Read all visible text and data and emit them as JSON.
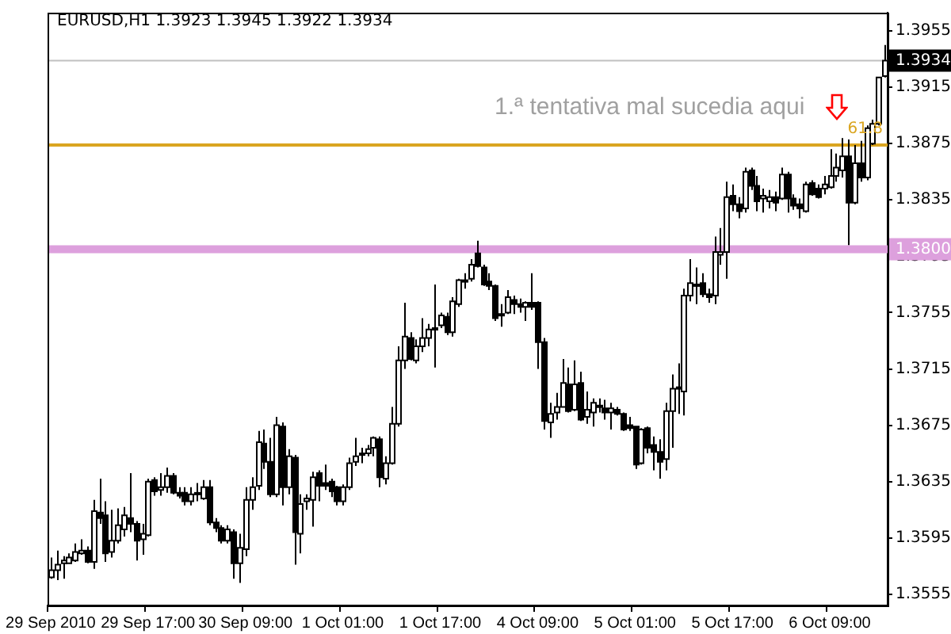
{
  "chart_data": {
    "type": "candlestick",
    "title": "EURUSD,H1  1.3923 1.3945 1.3922 1.3934",
    "categories": [
      "29 Sep 2010",
      null,
      null,
      null,
      null,
      null,
      null,
      null,
      null,
      null,
      null,
      null,
      null,
      null,
      null,
      null,
      "29 Sep 17:00",
      null,
      null,
      null,
      null,
      null,
      null,
      null,
      null,
      null,
      null,
      null,
      null,
      null,
      null,
      null,
      "30 Sep 09:00",
      null,
      null,
      null,
      null,
      null,
      null,
      null,
      null,
      null,
      null,
      null,
      null,
      null,
      null,
      null,
      "1 Oct 01:00",
      null,
      null,
      null,
      null,
      null,
      null,
      null,
      null,
      null,
      null,
      null,
      null,
      null,
      null,
      null,
      "1 Oct 17:00",
      null,
      null,
      null,
      null,
      null,
      null,
      null,
      null,
      null,
      null,
      null,
      null,
      null,
      null,
      null,
      "4 Oct 09:00",
      null,
      null,
      null,
      null,
      null,
      null,
      null,
      null,
      null,
      null,
      null,
      null,
      null,
      null,
      null,
      "5 Oct 01:00",
      null,
      null,
      null,
      null,
      null,
      null,
      null,
      null,
      null,
      null,
      null,
      null,
      null,
      null,
      null,
      "5 Oct 17:00",
      null,
      null,
      null,
      null,
      null,
      null,
      null,
      null,
      null,
      null,
      null,
      null,
      null,
      null,
      null,
      "6 Oct 09:00",
      null,
      null,
      null,
      null,
      null,
      null,
      null,
      null,
      null
    ],
    "ohlc": [
      [
        1.3567,
        1.3581,
        1.3566,
        1.3572
      ],
      [
        1.3572,
        1.3586,
        1.3565,
        1.3576
      ],
      [
        1.3577,
        1.3582,
        1.3566,
        1.3579
      ],
      [
        1.3577,
        1.3584,
        1.3577,
        1.3581
      ],
      [
        1.3579,
        1.3591,
        1.3578,
        1.3585
      ],
      [
        1.3584,
        1.3594,
        1.3583,
        1.3586
      ],
      [
        1.3586,
        1.3589,
        1.3577,
        1.3578
      ],
      [
        1.3578,
        1.3622,
        1.3573,
        1.3614
      ],
      [
        1.3613,
        1.3637,
        1.3605,
        1.3609
      ],
      [
        1.3611,
        1.3621,
        1.3578,
        1.3584
      ],
      [
        1.3585,
        1.3615,
        1.3581,
        1.3593
      ],
      [
        1.3593,
        1.3616,
        1.3591,
        1.3604
      ],
      [
        1.3601,
        1.3617,
        1.3596,
        1.3611
      ],
      [
        1.3609,
        1.3641,
        1.3599,
        1.3605
      ],
      [
        1.3605,
        1.3607,
        1.3579,
        1.3593
      ],
      [
        1.3594,
        1.3605,
        1.3583,
        1.3598
      ],
      [
        1.3597,
        1.3637,
        1.3596,
        1.3635
      ],
      [
        1.3636,
        1.3638,
        1.3625,
        1.3628
      ],
      [
        1.3629,
        1.3641,
        1.3625,
        1.3631
      ],
      [
        1.3631,
        1.3645,
        1.3627,
        1.3639
      ],
      [
        1.3639,
        1.3641,
        1.3626,
        1.3627
      ],
      [
        1.3627,
        1.3631,
        1.3623,
        1.3625
      ],
      [
        1.3627,
        1.3631,
        1.3618,
        1.3621
      ],
      [
        1.3621,
        1.3631,
        1.3618,
        1.3626
      ],
      [
        1.3626,
        1.3634,
        1.3621,
        1.3627
      ],
      [
        1.3623,
        1.3636,
        1.3622,
        1.3631
      ],
      [
        1.3631,
        1.3636,
        1.3604,
        1.3606
      ],
      [
        1.3606,
        1.3609,
        1.3599,
        1.3602
      ],
      [
        1.3602,
        1.3604,
        1.3591,
        1.3593
      ],
      [
        1.3593,
        1.3604,
        1.3591,
        1.3601
      ],
      [
        1.3599,
        1.3601,
        1.3566,
        1.3577
      ],
      [
        1.3577,
        1.3598,
        1.3563,
        1.3588
      ],
      [
        1.3587,
        1.3631,
        1.3582,
        1.3622
      ],
      [
        1.3622,
        1.3638,
        1.3615,
        1.3631
      ],
      [
        1.3632,
        1.3671,
        1.3629,
        1.3663
      ],
      [
        1.3662,
        1.3672,
        1.3644,
        1.3649
      ],
      [
        1.3649,
        1.3666,
        1.3624,
        1.3626
      ],
      [
        1.3626,
        1.3681,
        1.3624,
        1.3675
      ],
      [
        1.3674,
        1.3677,
        1.3618,
        1.3631
      ],
      [
        1.3631,
        1.3658,
        1.3626,
        1.3653
      ],
      [
        1.3652,
        1.3654,
        1.3576,
        1.3599
      ],
      [
        1.3598,
        1.3626,
        1.3584,
        1.3619
      ],
      [
        1.3621,
        1.3626,
        1.3615,
        1.3623
      ],
      [
        1.3622,
        1.3642,
        1.3603,
        1.3638
      ],
      [
        1.3641,
        1.3643,
        1.3621,
        1.3632
      ],
      [
        1.3634,
        1.3647,
        1.3629,
        1.3632
      ],
      [
        1.3635,
        1.3637,
        1.3624,
        1.3628
      ],
      [
        1.3631,
        1.3632,
        1.3618,
        1.3621
      ],
      [
        1.3621,
        1.3633,
        1.3618,
        1.3631
      ],
      [
        1.3631,
        1.3652,
        1.3629,
        1.3648
      ],
      [
        1.3649,
        1.3666,
        1.3646,
        1.3653
      ],
      [
        1.3655,
        1.3659,
        1.3648,
        1.3654
      ],
      [
        1.3655,
        1.3661,
        1.3653,
        1.3658
      ],
      [
        1.3659,
        1.3667,
        1.3653,
        1.3666
      ],
      [
        1.3665,
        1.3667,
        1.3631,
        1.3638
      ],
      [
        1.3637,
        1.3653,
        1.3633,
        1.3648
      ],
      [
        1.3648,
        1.3688,
        1.3647,
        1.3676
      ],
      [
        1.3676,
        1.3731,
        1.3674,
        1.3721
      ],
      [
        1.3721,
        1.3762,
        1.3715,
        1.3738
      ],
      [
        1.3737,
        1.3741,
        1.3721,
        1.3722
      ],
      [
        1.3721,
        1.3736,
        1.3719,
        1.3731
      ],
      [
        1.3731,
        1.3751,
        1.3727,
        1.3737
      ],
      [
        1.3737,
        1.3747,
        1.3731,
        1.3743
      ],
      [
        1.3744,
        1.3775,
        1.3716,
        1.3743
      ],
      [
        1.3746,
        1.3755,
        1.3744,
        1.3753
      ],
      [
        1.3752,
        1.3755,
        1.3739,
        1.3741
      ],
      [
        1.3741,
        1.3766,
        1.3738,
        1.3763
      ],
      [
        1.3761,
        1.3779,
        1.3759,
        1.3778
      ],
      [
        1.3777,
        1.3783,
        1.3772,
        1.3778
      ],
      [
        1.3779,
        1.3793,
        1.3777,
        1.3789
      ],
      [
        1.3797,
        1.3806,
        1.3787,
        1.3788
      ],
      [
        1.3787,
        1.3789,
        1.3774,
        1.3775
      ],
      [
        1.3777,
        1.3783,
        1.3771,
        1.3774
      ],
      [
        1.3774,
        1.3775,
        1.3749,
        1.3751
      ],
      [
        1.3754,
        1.3761,
        1.3745,
        1.3753
      ],
      [
        1.3755,
        1.3771,
        1.3754,
        1.3766
      ],
      [
        1.3764,
        1.3767,
        1.3754,
        1.3761
      ],
      [
        1.3761,
        1.3765,
        1.3755,
        1.3759
      ],
      [
        1.3759,
        1.3763,
        1.3749,
        1.3762
      ],
      [
        1.3762,
        1.3783,
        1.3757,
        1.3759
      ],
      [
        1.3762,
        1.3763,
        1.3715,
        1.3734
      ],
      [
        1.3734,
        1.3737,
        1.3672,
        1.3678
      ],
      [
        1.3677,
        1.3691,
        1.3666,
        1.3683
      ],
      [
        1.3684,
        1.3698,
        1.3679,
        1.3688
      ],
      [
        1.3688,
        1.3722,
        1.3688,
        1.3705
      ],
      [
        1.3704,
        1.3716,
        1.3684,
        1.3685
      ],
      [
        1.3686,
        1.3721,
        1.3685,
        1.3704
      ],
      [
        1.3705,
        1.3713,
        1.3678,
        1.3679
      ],
      [
        1.3681,
        1.3699,
        1.3676,
        1.3686
      ],
      [
        1.3684,
        1.3694,
        1.3674,
        1.3691
      ],
      [
        1.3689,
        1.3694,
        1.3684,
        1.3688
      ],
      [
        1.3687,
        1.3693,
        1.3679,
        1.3684
      ],
      [
        1.3684,
        1.3691,
        1.3672,
        1.3687
      ],
      [
        1.3686,
        1.3688,
        1.3682,
        1.3683
      ],
      [
        1.3683,
        1.3684,
        1.3671,
        1.3672
      ],
      [
        1.3675,
        1.3681,
        1.3671,
        1.3673
      ],
      [
        1.3674,
        1.3674,
        1.3644,
        1.3647
      ],
      [
        1.3648,
        1.3673,
        1.3647,
        1.3672
      ],
      [
        1.3673,
        1.3674,
        1.3655,
        1.3659
      ],
      [
        1.3661,
        1.3667,
        1.3643,
        1.3656
      ],
      [
        1.3656,
        1.3665,
        1.3637,
        1.3649
      ],
      [
        1.3651,
        1.3691,
        1.3643,
        1.3685
      ],
      [
        1.3685,
        1.3711,
        1.3659,
        1.3701
      ],
      [
        1.3701,
        1.3719,
        1.3683,
        1.3702
      ],
      [
        1.3699,
        1.3772,
        1.3682,
        1.3767
      ],
      [
        1.3767,
        1.3793,
        1.3763,
        1.3776
      ],
      [
        1.3774,
        1.3787,
        1.3761,
        1.3775
      ],
      [
        1.3776,
        1.3783,
        1.3766,
        1.3768
      ],
      [
        1.3768,
        1.3772,
        1.3762,
        1.3766
      ],
      [
        1.3767,
        1.3809,
        1.3761,
        1.3798
      ],
      [
        1.3796,
        1.3815,
        1.3789,
        1.3798
      ],
      [
        1.3798,
        1.3848,
        1.3779,
        1.3837
      ],
      [
        1.3838,
        1.3846,
        1.3827,
        1.3832
      ],
      [
        1.3832,
        1.3837,
        1.3822,
        1.3827
      ],
      [
        1.3829,
        1.3858,
        1.3826,
        1.3855
      ],
      [
        1.3856,
        1.3858,
        1.3842,
        1.3845
      ],
      [
        1.3845,
        1.3852,
        1.3827,
        1.3834
      ],
      [
        1.3836,
        1.3843,
        1.3826,
        1.3838
      ],
      [
        1.3834,
        1.3842,
        1.3829,
        1.3837
      ],
      [
        1.3837,
        1.3841,
        1.3827,
        1.3833
      ],
      [
        1.3836,
        1.3858,
        1.3835,
        1.3853
      ],
      [
        1.3853,
        1.3855,
        1.3826,
        1.3836
      ],
      [
        1.3836,
        1.3839,
        1.3828,
        1.3831
      ],
      [
        1.3832,
        1.3836,
        1.3822,
        1.3829
      ],
      [
        1.3827,
        1.3848,
        1.3826,
        1.3846
      ],
      [
        1.3847,
        1.3849,
        1.3838,
        1.3839
      ],
      [
        1.3843,
        1.3846,
        1.3836,
        1.3837
      ],
      [
        1.3843,
        1.3852,
        1.3839,
        1.3846
      ],
      [
        1.3844,
        1.3871,
        1.3843,
        1.3852
      ],
      [
        1.3852,
        1.3868,
        1.3848,
        1.3858
      ],
      [
        1.3856,
        1.3879,
        1.3851,
        1.3866
      ],
      [
        1.3866,
        1.3878,
        1.3803,
        1.3833
      ],
      [
        1.3833,
        1.3874,
        1.3832,
        1.3861
      ],
      [
        1.3861,
        1.3877,
        1.3848,
        1.3851
      ],
      [
        1.3851,
        1.3888,
        1.3849,
        1.3886
      ],
      [
        1.3875,
        1.3892,
        1.3874,
        1.3889
      ],
      [
        1.3889,
        1.3922,
        1.3888,
        1.3922
      ],
      [
        1.3923,
        1.3945,
        1.3922,
        1.3934
      ]
    ],
    "ylim": [
      1.3547,
      1.3968
    ],
    "yticks": [
      1.3555,
      1.3595,
      1.3635,
      1.3675,
      1.3715,
      1.3755,
      1.3795,
      1.3835,
      1.3875,
      1.3915,
      1.3955
    ],
    "ref_lines": [
      {
        "axis": "y",
        "value": 1.38,
        "label": "1.3800",
        "color": "#dda0dd"
      },
      {
        "axis": "y",
        "value": 1.3874,
        "color": "#daa520"
      },
      {
        "axis": "y",
        "value": 1.3934,
        "label": "1.3934",
        "color": "#c0c0c0"
      }
    ],
    "annotations": [
      "1.ª tentativa mal sucedia aqui",
      {
        "text": "61.8",
        "y": 1.3874
      }
    ]
  }
}
